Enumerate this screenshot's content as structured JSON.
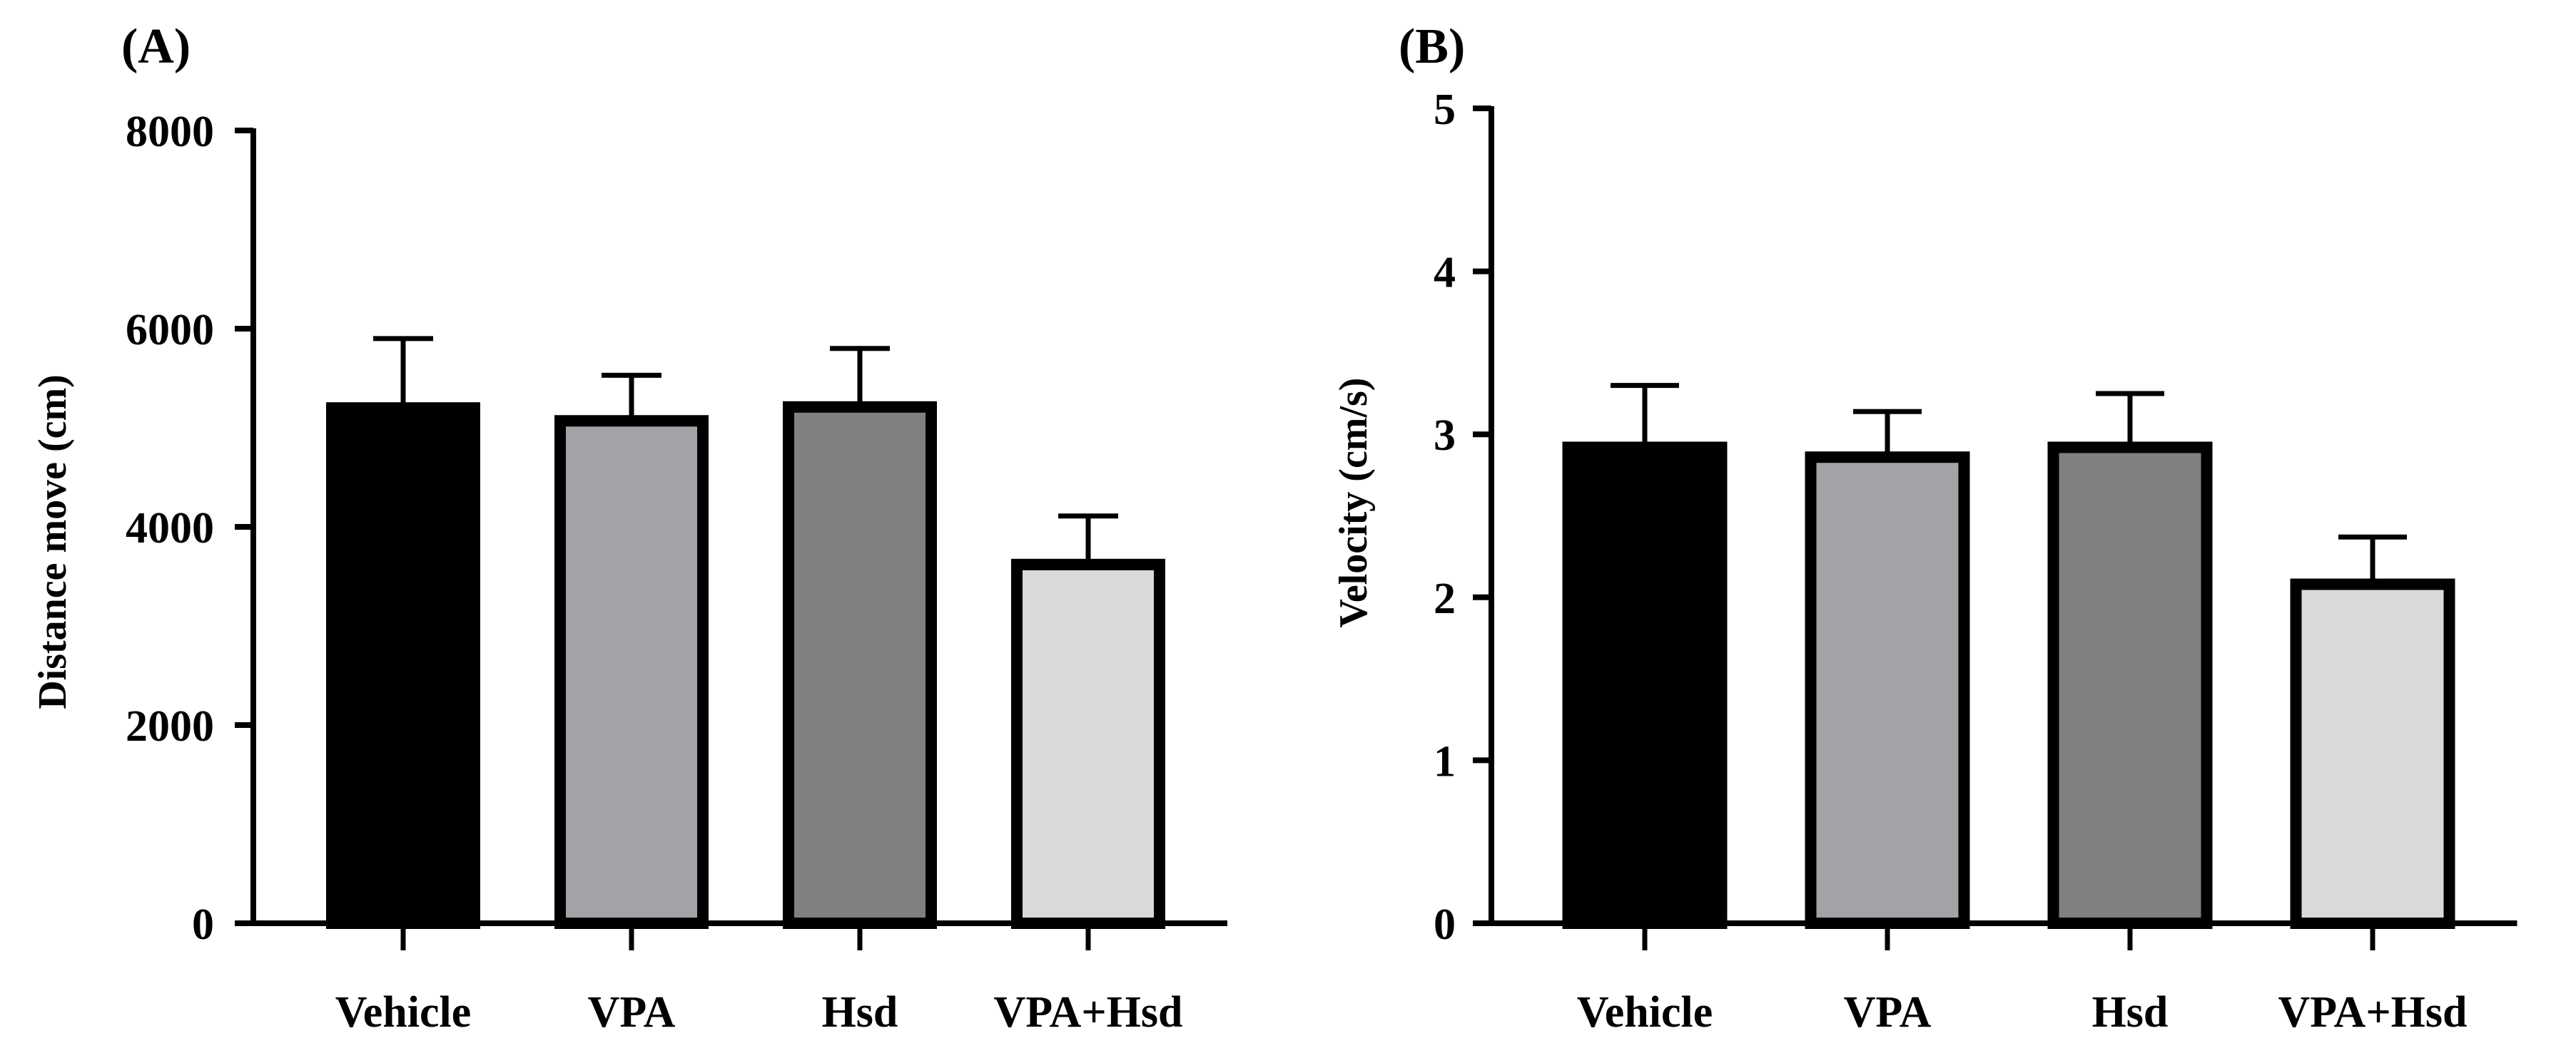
{
  "chart_data": [
    {
      "panel": "(A)",
      "type": "bar",
      "categories": [
        "Vehicle",
        "VPA",
        "Hsd",
        "VPA+Hsd"
      ],
      "values": [
        5200,
        5070,
        5210,
        3620
      ],
      "errors": [
        700,
        460,
        590,
        490
      ],
      "colors": [
        "#000000",
        "#a3a2a7",
        "#808080",
        "#d9d9d9"
      ],
      "ylabel": "Distance move (cm)",
      "xlabel": "",
      "ylim": [
        0,
        8000
      ],
      "yticks": [
        0,
        2000,
        4000,
        6000,
        8000
      ],
      "ytick_labels": [
        "0",
        "2000",
        "4000",
        "6000",
        "8000"
      ],
      "grid": false
    },
    {
      "panel": "(B)",
      "type": "bar",
      "categories": [
        "Vehicle",
        "VPA",
        "Hsd",
        "VPA+Hsd"
      ],
      "values": [
        2.92,
        2.86,
        2.92,
        2.08
      ],
      "errors": [
        0.38,
        0.28,
        0.33,
        0.29
      ],
      "colors": [
        "#000000",
        "#a3a2a7",
        "#808080",
        "#d9d9d9"
      ],
      "ylabel": "Velocity (cm/s)",
      "xlabel": "",
      "ylim": [
        0,
        5
      ],
      "yticks": [
        0,
        1,
        2,
        3,
        4,
        5
      ],
      "ytick_labels": [
        "0",
        "1",
        "2",
        "3",
        "4",
        "5"
      ],
      "grid": false
    }
  ]
}
